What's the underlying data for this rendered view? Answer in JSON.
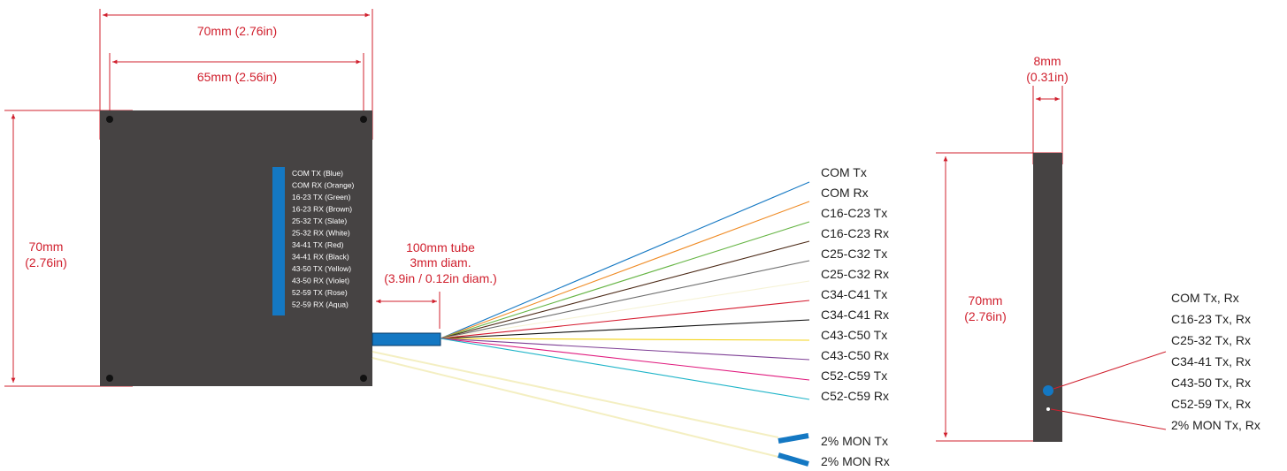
{
  "colors": {
    "dimension": "#d0202e",
    "box": "#464343",
    "tube": "#1478c3",
    "fibers": [
      "#1478c3",
      "#ef8b25",
      "#66b545",
      "#4c2a17",
      "#6f6f6f",
      "#f6f3d6",
      "#d51b2f",
      "#111111",
      "#f4d419",
      "#7e3f95",
      "#e0197d",
      "#1eb4c8"
    ],
    "mon_fiber": "#f4efc2"
  },
  "front_view": {
    "width_outer": "70mm (2.76in)",
    "width_holes": "65mm (2.56in)",
    "height_mm": "70mm",
    "height_in": "(2.76in)",
    "legend": [
      "COM TX (Blue)",
      "COM RX (Orange)",
      "16-23 TX (Green)",
      "16-23 RX (Brown)",
      "25-32 TX (Slate)",
      "25-32 RX (White)",
      "34-41 TX (Red)",
      "34-41 RX (Black)",
      "43-50 TX (Yellow)",
      "43-50 RX (Violet)",
      "52-59 TX (Rose)",
      "52-59 RX (Aqua)"
    ]
  },
  "tube": {
    "line1": "100mm tube",
    "line2": "3mm diam.",
    "line3": "(3.9in / 0.12in diam.)"
  },
  "fiber_labels": [
    "COM Tx",
    "COM Rx",
    "C16-C23 Tx",
    "C16-C23 Rx",
    "C25-C32 Tx",
    "C25-C32 Rx",
    "C34-C41 Tx",
    "C34-C41 Rx",
    "C43-C50 Tx",
    "C43-C50 Rx",
    "C52-C59 Tx",
    "C52-C59 Rx"
  ],
  "mon_labels": [
    "2% MON Tx",
    "2% MON Rx"
  ],
  "side_view": {
    "thickness_mm": "8mm",
    "thickness_in": "(0.31in)",
    "height_mm": "70mm",
    "height_in": "(2.76in)",
    "port_labels": [
      "COM Tx, Rx",
      "C16-23 Tx, Rx",
      "C25-32 Tx, Rx",
      "C34-41 Tx, Rx",
      "C43-50 Tx, Rx",
      "C52-59 Tx, Rx",
      "2% MON Tx, Rx"
    ]
  }
}
